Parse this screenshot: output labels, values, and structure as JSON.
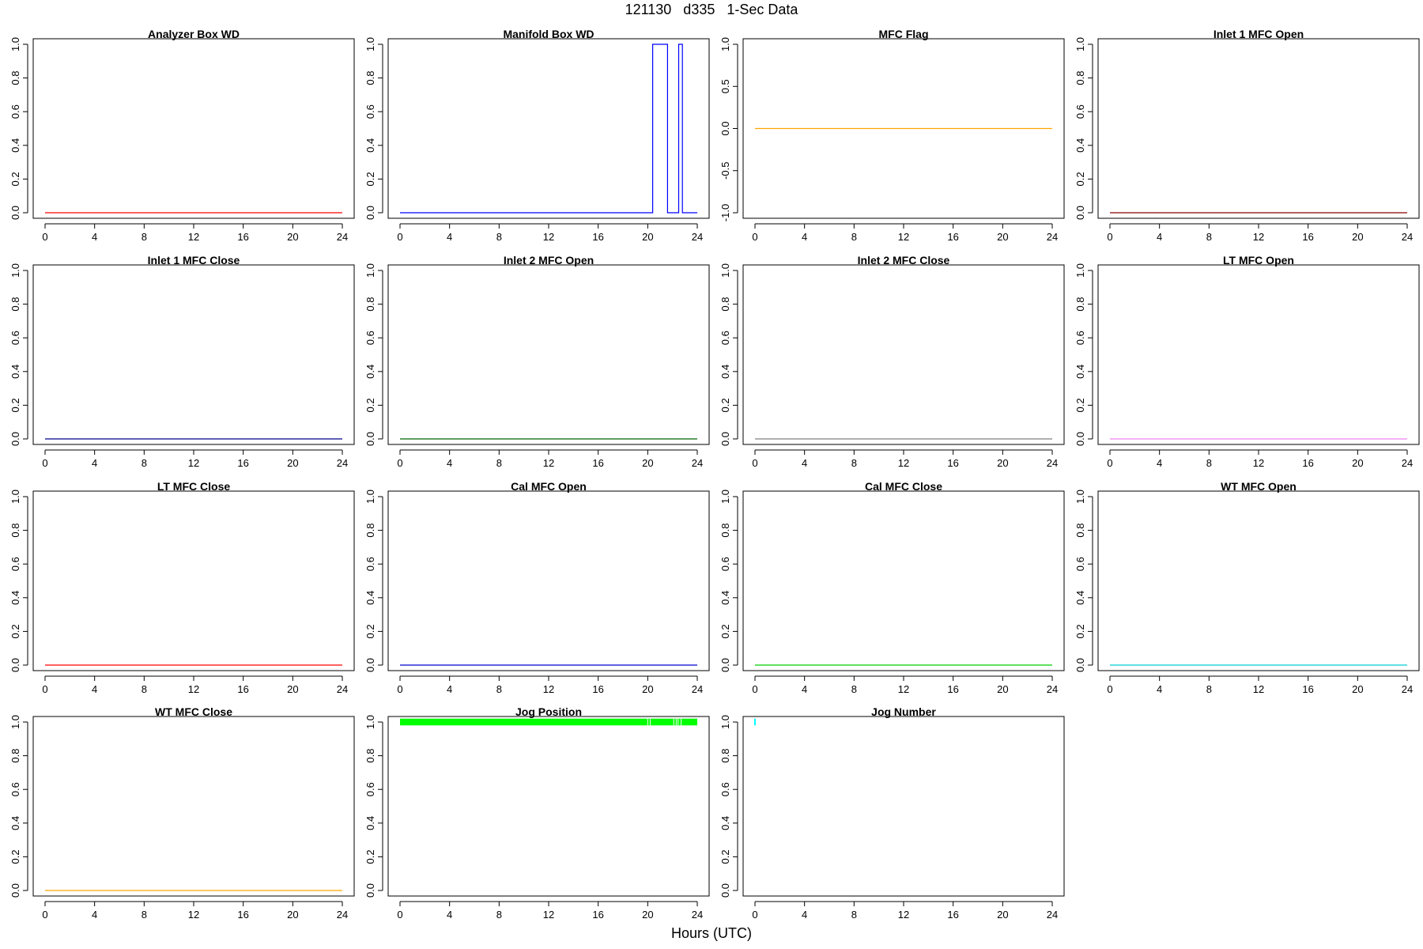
{
  "figure": {
    "title": "121130   d335   1-Sec Data",
    "xlabel": "Hours (UTC)"
  },
  "chart_data": [
    {
      "type": "line",
      "title": "Analyzer Box WD",
      "color": "#ff0000",
      "xlim": [
        0,
        24
      ],
      "ylim": [
        0,
        1
      ],
      "xticks": [
        0,
        4,
        8,
        12,
        16,
        20,
        24
      ],
      "yticks": [
        "0.0",
        "0.2",
        "0.4",
        "0.6",
        "0.8",
        "1.0"
      ],
      "x": [
        0,
        24
      ],
      "y": [
        0,
        0
      ]
    },
    {
      "type": "line",
      "title": "Manifold Box WD",
      "color": "#0000ff",
      "xlim": [
        0,
        24
      ],
      "ylim": [
        0,
        1
      ],
      "xticks": [
        0,
        4,
        8,
        12,
        16,
        20,
        24
      ],
      "yticks": [
        "0.0",
        "0.2",
        "0.4",
        "0.6",
        "0.8",
        "1.0"
      ],
      "x": [
        0,
        20.4,
        20.4,
        21.6,
        21.6,
        22.5,
        22.5,
        22.8,
        22.8,
        24
      ],
      "y": [
        0,
        0,
        1,
        1,
        0,
        0,
        1,
        1,
        0,
        0
      ]
    },
    {
      "type": "line",
      "title": "MFC Flag",
      "color": "#ffa500",
      "xlim": [
        0,
        24
      ],
      "ylim": [
        -1,
        1
      ],
      "xticks": [
        0,
        4,
        8,
        12,
        16,
        20,
        24
      ],
      "yticks": [
        "-1.0",
        "-0.5",
        "0.0",
        "0.5",
        "1.0"
      ],
      "x": [
        0,
        24
      ],
      "y": [
        0,
        0
      ]
    },
    {
      "type": "line",
      "title": "Inlet 1 MFC Open",
      "color": "#8b0000",
      "xlim": [
        0,
        24
      ],
      "ylim": [
        0,
        1
      ],
      "xticks": [
        0,
        4,
        8,
        12,
        16,
        20,
        24
      ],
      "yticks": [
        "0.0",
        "0.2",
        "0.4",
        "0.6",
        "0.8",
        "1.0"
      ],
      "x": [
        0,
        24
      ],
      "y": [
        0,
        0
      ]
    },
    {
      "type": "line",
      "title": "Inlet 1 MFC Close",
      "color": "#00008b",
      "xlim": [
        0,
        24
      ],
      "ylim": [
        0,
        1
      ],
      "xticks": [
        0,
        4,
        8,
        12,
        16,
        20,
        24
      ],
      "yticks": [
        "0.0",
        "0.2",
        "0.4",
        "0.6",
        "0.8",
        "1.0"
      ],
      "x": [
        0,
        24
      ],
      "y": [
        0,
        0
      ]
    },
    {
      "type": "line",
      "title": "Inlet 2 MFC Open",
      "color": "#006400",
      "xlim": [
        0,
        24
      ],
      "ylim": [
        0,
        1
      ],
      "xticks": [
        0,
        4,
        8,
        12,
        16,
        20,
        24
      ],
      "yticks": [
        "0.0",
        "0.2",
        "0.4",
        "0.6",
        "0.8",
        "1.0"
      ],
      "x": [
        0,
        24
      ],
      "y": [
        0,
        0
      ]
    },
    {
      "type": "line",
      "title": "Inlet 2 MFC Close",
      "color": "#808080",
      "xlim": [
        0,
        24
      ],
      "ylim": [
        0,
        1
      ],
      "xticks": [
        0,
        4,
        8,
        12,
        16,
        20,
        24
      ],
      "yticks": [
        "0.0",
        "0.2",
        "0.4",
        "0.6",
        "0.8",
        "1.0"
      ],
      "x": [
        0,
        24
      ],
      "y": [
        0,
        0
      ]
    },
    {
      "type": "line",
      "title": "LT MFC Open",
      "color": "#ee82ee",
      "xlim": [
        0,
        24
      ],
      "ylim": [
        0,
        1
      ],
      "xticks": [
        0,
        4,
        8,
        12,
        16,
        20,
        24
      ],
      "yticks": [
        "0.0",
        "0.2",
        "0.4",
        "0.6",
        "0.8",
        "1.0"
      ],
      "x": [
        0,
        24
      ],
      "y": [
        0,
        0
      ]
    },
    {
      "type": "line",
      "title": "LT MFC Close",
      "color": "#ff0000",
      "xlim": [
        0,
        24
      ],
      "ylim": [
        0,
        1
      ],
      "xticks": [
        0,
        4,
        8,
        12,
        16,
        20,
        24
      ],
      "yticks": [
        "0.0",
        "0.2",
        "0.4",
        "0.6",
        "0.8",
        "1.0"
      ],
      "x": [
        0,
        24
      ],
      "y": [
        0,
        0
      ]
    },
    {
      "type": "line",
      "title": "Cal MFC Open",
      "color": "#0000cd",
      "xlim": [
        0,
        24
      ],
      "ylim": [
        0,
        1
      ],
      "xticks": [
        0,
        4,
        8,
        12,
        16,
        20,
        24
      ],
      "yticks": [
        "0.0",
        "0.2",
        "0.4",
        "0.6",
        "0.8",
        "1.0"
      ],
      "x": [
        0,
        24
      ],
      "y": [
        0,
        0
      ]
    },
    {
      "type": "line",
      "title": "Cal MFC Close",
      "color": "#00cd00",
      "xlim": [
        0,
        24
      ],
      "ylim": [
        0,
        1
      ],
      "xticks": [
        0,
        4,
        8,
        12,
        16,
        20,
        24
      ],
      "yticks": [
        "0.0",
        "0.2",
        "0.4",
        "0.6",
        "0.8",
        "1.0"
      ],
      "x": [
        0,
        24
      ],
      "y": [
        0,
        0
      ]
    },
    {
      "type": "line",
      "title": "WT MFC Open",
      "color": "#00ced1",
      "xlim": [
        0,
        24
      ],
      "ylim": [
        0,
        1
      ],
      "xticks": [
        0,
        4,
        8,
        12,
        16,
        20,
        24
      ],
      "yticks": [
        "0.0",
        "0.2",
        "0.4",
        "0.6",
        "0.8",
        "1.0"
      ],
      "x": [
        0,
        24
      ],
      "y": [
        0,
        0
      ]
    },
    {
      "type": "line",
      "title": "WT MFC Close",
      "color": "#ffa500",
      "xlim": [
        0,
        24
      ],
      "ylim": [
        0,
        1
      ],
      "xticks": [
        0,
        4,
        8,
        12,
        16,
        20,
        24
      ],
      "yticks": [
        "0.0",
        "0.2",
        "0.4",
        "0.6",
        "0.8",
        "1.0"
      ],
      "x": [
        0,
        24
      ],
      "y": [
        0,
        0
      ]
    },
    {
      "type": "area",
      "title": "Jog Position",
      "color": "#00ff00",
      "xlim": [
        0,
        24
      ],
      "ylim": [
        0,
        1
      ],
      "xticks": [
        0,
        4,
        8,
        12,
        16,
        20,
        24
      ],
      "yticks": [
        "0.0",
        "0.2",
        "0.4",
        "0.6",
        "0.8",
        "1.0"
      ],
      "band_y": [
        0.98,
        1.02
      ],
      "band_x": [
        0,
        24
      ],
      "gaps_x": [
        20.0,
        20.2,
        22.1,
        22.3,
        22.45,
        22.7
      ]
    },
    {
      "type": "line",
      "title": "Jog Number",
      "color": "#00ffff",
      "xlim": [
        0,
        24
      ],
      "ylim": [
        0,
        1
      ],
      "xticks": [
        0,
        4,
        8,
        12,
        16,
        20,
        24
      ],
      "yticks": [
        "0.0",
        "0.2",
        "0.4",
        "0.6",
        "0.8",
        "1.0"
      ],
      "x": [
        0,
        0
      ],
      "y": [
        0.98,
        1.02
      ]
    }
  ]
}
